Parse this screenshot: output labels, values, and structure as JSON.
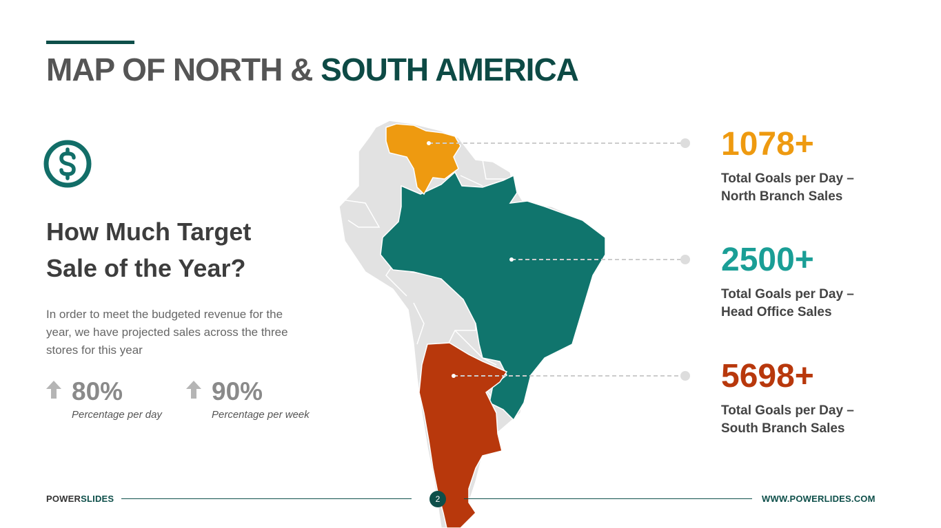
{
  "title": {
    "part1": "MAP OF NORTH & ",
    "part2": "SOUTH AMERICA"
  },
  "icon": {
    "name": "dollar-circle-icon",
    "color": "#126e68"
  },
  "heading": "How Much Target Sale of the Year?",
  "description": "In order to meet the budgeted revenue for the year, we have projected sales across the three stores for this year",
  "stats": [
    {
      "value": "80%",
      "label": "Percentage per day",
      "icon": "arrow-up-icon"
    },
    {
      "value": "90%",
      "label": "Percentage per week",
      "icon": "arrow-up-icon"
    }
  ],
  "map": {
    "highlights": [
      {
        "region": "Venezuela",
        "color": "#ee9a10"
      },
      {
        "region": "Brazil",
        "color": "#10756d"
      },
      {
        "region": "Argentina",
        "color": "#b8380c"
      }
    ],
    "base_color": "#e2e2e2"
  },
  "metrics": [
    {
      "value": "1078+",
      "line1": "Total Goals per Day –",
      "line2": "North Branch Sales",
      "color": "#ee9a10"
    },
    {
      "value": "2500+",
      "line1": "Total Goals per Day –",
      "line2": "Head Office Sales",
      "color": "#1a9e96"
    },
    {
      "value": "5698+",
      "line1": "Total Goals per Day –",
      "line2": "South Branch Sales",
      "color": "#b8380c"
    }
  ],
  "footer": {
    "brand_part1": "POWER",
    "brand_part2": "SLIDES",
    "page_number": "2",
    "url": "WWW.POWERLIDES.COM"
  }
}
